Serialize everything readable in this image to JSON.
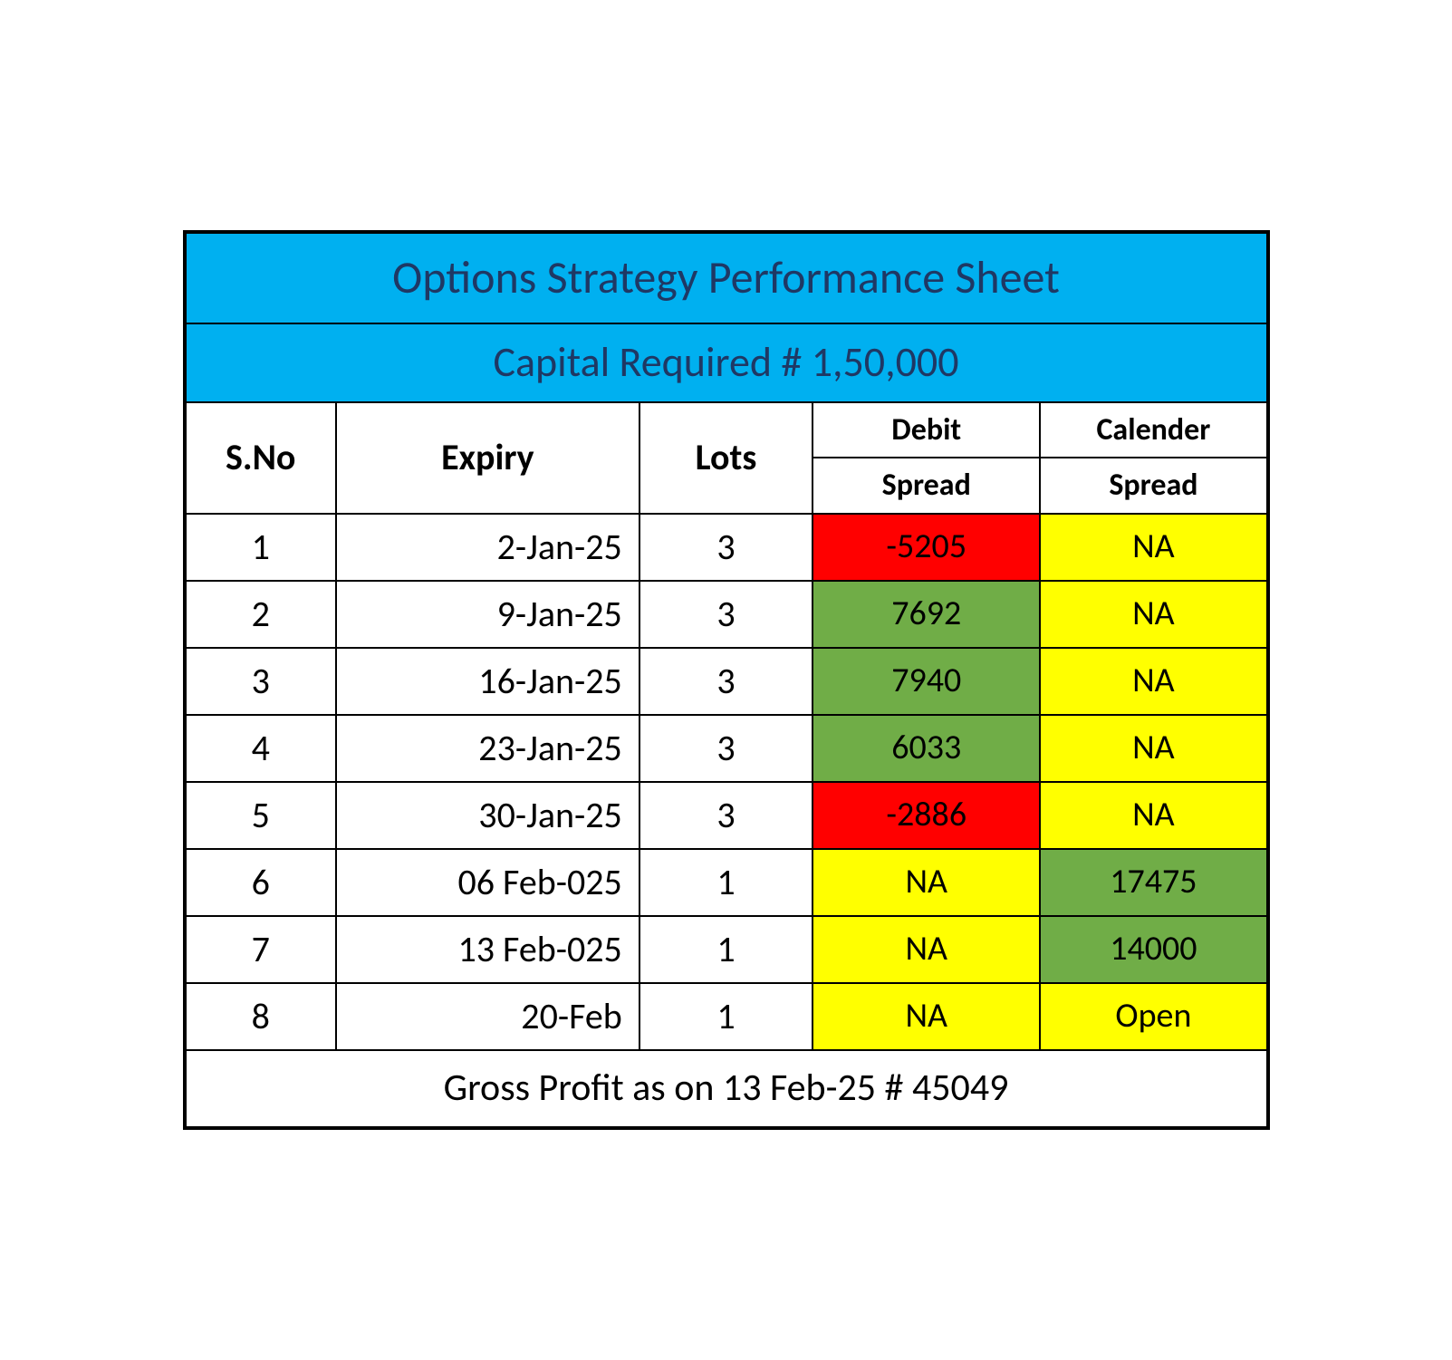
{
  "title": "Options Strategy Performance Sheet",
  "subtitle": "Capital Required # 1,50,000",
  "headers": {
    "sno": "S.No",
    "expiry": "Expiry",
    "lots": "Lots",
    "debit_top": "Debit",
    "debit_bottom": "Spread",
    "calender_top": "Calender",
    "calender_bottom": "Spread"
  },
  "colors": {
    "header_bg": "#00b0f0",
    "header_text": "#1f3864",
    "red": "#ff0000",
    "green": "#70ad47",
    "yellow": "#ffff00",
    "white": "#ffffff",
    "border": "#000000"
  },
  "rows": [
    {
      "sno": "1",
      "expiry": "2-Jan-25",
      "lots": "3",
      "debit": {
        "value": "-5205",
        "bg": "#ff0000"
      },
      "calender": {
        "value": "NA",
        "bg": "#ffff00"
      }
    },
    {
      "sno": "2",
      "expiry": "9-Jan-25",
      "lots": "3",
      "debit": {
        "value": "7692",
        "bg": "#70ad47"
      },
      "calender": {
        "value": "NA",
        "bg": "#ffff00"
      }
    },
    {
      "sno": "3",
      "expiry": "16-Jan-25",
      "lots": "3",
      "debit": {
        "value": "7940",
        "bg": "#70ad47"
      },
      "calender": {
        "value": "NA",
        "bg": "#ffff00"
      }
    },
    {
      "sno": "4",
      "expiry": "23-Jan-25",
      "lots": "3",
      "debit": {
        "value": "6033",
        "bg": "#70ad47"
      },
      "calender": {
        "value": "NA",
        "bg": "#ffff00"
      }
    },
    {
      "sno": "5",
      "expiry": "30-Jan-25",
      "lots": "3",
      "debit": {
        "value": "-2886",
        "bg": "#ff0000"
      },
      "calender": {
        "value": "NA",
        "bg": "#ffff00"
      }
    },
    {
      "sno": "6",
      "expiry": "06 Feb-025",
      "lots": "1",
      "debit": {
        "value": "NA",
        "bg": "#ffff00"
      },
      "calender": {
        "value": "17475",
        "bg": "#70ad47"
      }
    },
    {
      "sno": "7",
      "expiry": "13 Feb-025",
      "lots": "1",
      "debit": {
        "value": "NA",
        "bg": "#ffff00"
      },
      "calender": {
        "value": "14000",
        "bg": "#70ad47"
      }
    },
    {
      "sno": "8",
      "expiry": "20-Feb",
      "lots": "1",
      "debit": {
        "value": "NA",
        "bg": "#ffff00"
      },
      "calender": {
        "value": "Open",
        "bg": "#ffff00"
      }
    }
  ],
  "footer": "Gross Profit as on 13 Feb-25 # 45049"
}
